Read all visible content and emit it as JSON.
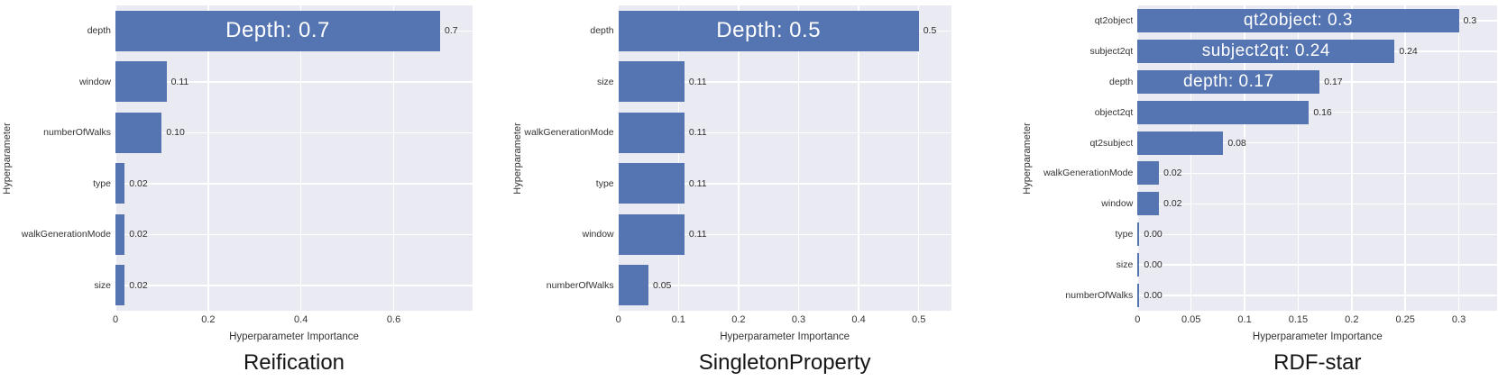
{
  "chart_data": [
    {
      "type": "bar",
      "orientation": "horizontal",
      "title": "Reification",
      "xlabel": "Hyperparameter Importance",
      "ylabel": "Hyperparameter",
      "categories": [
        "depth",
        "window",
        "numberOfWalks",
        "type",
        "walkGenerationMode",
        "size"
      ],
      "values": [
        0.7,
        0.11,
        0.1,
        0.02,
        0.02,
        0.02
      ],
      "value_labels": [
        "0.7",
        "0.11",
        "0.10",
        "0.02",
        "0.02",
        "0.02"
      ],
      "bar_annotations": [
        {
          "bar": "depth",
          "text": "Depth: 0.7"
        }
      ],
      "xtick_values": [
        0,
        0.2,
        0.4,
        0.6
      ],
      "xtick_labels": [
        "0",
        "0.2",
        "0.4",
        "0.6"
      ],
      "xlim": [
        0,
        0.77
      ],
      "grid": true,
      "legend": false
    },
    {
      "type": "bar",
      "orientation": "horizontal",
      "title": "SingletonProperty",
      "xlabel": "Hyperparameter Importance",
      "ylabel": "Hyperparameter",
      "categories": [
        "depth",
        "size",
        "walkGenerationMode",
        "type",
        "window",
        "numberOfWalks"
      ],
      "values": [
        0.5,
        0.11,
        0.11,
        0.11,
        0.11,
        0.05
      ],
      "value_labels": [
        "0.5",
        "0.11",
        "0.11",
        "0.11",
        "0.11",
        "0.05"
      ],
      "bar_annotations": [
        {
          "bar": "depth",
          "text": "Depth: 0.5"
        }
      ],
      "xtick_values": [
        0,
        0.1,
        0.2,
        0.3,
        0.4,
        0.5
      ],
      "xtick_labels": [
        "0",
        "0.1",
        "0.2",
        "0.3",
        "0.4",
        "0.5"
      ],
      "xlim": [
        0,
        0.554
      ],
      "grid": true,
      "legend": false
    },
    {
      "type": "bar",
      "orientation": "horizontal",
      "title": "RDF-star",
      "xlabel": "Hyperparameter Importance",
      "ylabel": "Hyperparameter",
      "categories": [
        "qt2object",
        "subject2qt",
        "depth",
        "object2qt",
        "qt2subject",
        "walkGenerationMode",
        "window",
        "type",
        "size",
        "numberOfWalks"
      ],
      "values": [
        0.3,
        0.24,
        0.17,
        0.16,
        0.08,
        0.02,
        0.02,
        0.0,
        0.0,
        0.0
      ],
      "value_labels": [
        "0.3",
        "0.24",
        "0.17",
        "0.16",
        "0.08",
        "0.02",
        "0.02",
        "0.00",
        "0.00",
        "0.00"
      ],
      "bar_annotations": [
        {
          "bar": "qt2object",
          "text": "qt2object: 0.3"
        },
        {
          "bar": "subject2qt",
          "text": "subject2qt: 0.24"
        },
        {
          "bar": "depth",
          "text": "depth: 0.17"
        }
      ],
      "xtick_values": [
        0,
        0.05,
        0.1,
        0.15,
        0.2,
        0.25,
        0.3
      ],
      "xtick_labels": [
        "0",
        "0.05",
        "0.1",
        "0.15",
        "0.2",
        "0.25",
        "0.3"
      ],
      "xlim": [
        0,
        0.336
      ],
      "grid": true,
      "legend": false
    }
  ],
  "colors": {
    "bar": "#5574b2",
    "plot_background": "#eaeaf2",
    "gridline": "#ffffff",
    "bar_annotation_text": "#ffffff",
    "value_label_text": "#2b2b2b",
    "tick_label_text": "#333333",
    "axis_label_text": "#333333",
    "title_text": "#151515",
    "page_background": "#ffffff"
  }
}
